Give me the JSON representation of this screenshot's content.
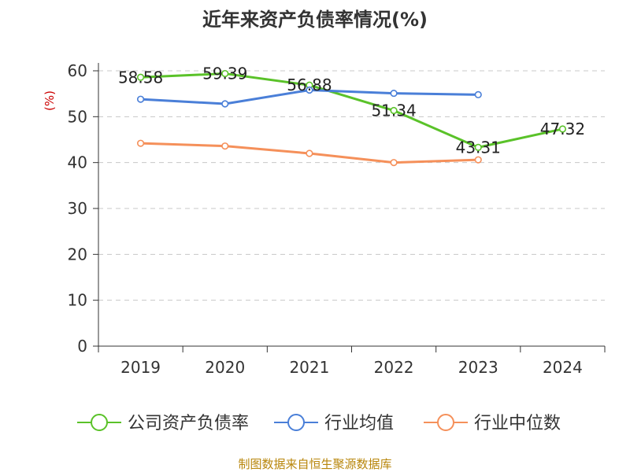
{
  "chart_data": {
    "type": "line",
    "title": "近年来资产负债率情况(%)",
    "ylabel": "(%)",
    "categories": [
      "2019",
      "2020",
      "2021",
      "2022",
      "2023",
      "2024"
    ],
    "ylim": [
      0,
      60
    ],
    "yticks": [
      0,
      10,
      20,
      30,
      40,
      50,
      60
    ],
    "grid": true,
    "legend_position": "bottom",
    "series": [
      {
        "name": "公司资产负债率",
        "color": "#5ac229",
        "values": [
          58.58,
          59.39,
          56.88,
          51.34,
          43.31,
          47.32
        ],
        "labels": [
          "58.58",
          "59.39",
          "56.88",
          "51.34",
          "43.31",
          "47.32"
        ]
      },
      {
        "name": "行业均值",
        "color": "#4a7fd8",
        "values": [
          53.8,
          52.8,
          55.8,
          55.1,
          54.8,
          null
        ]
      },
      {
        "name": "行业中位数",
        "color": "#f5905a",
        "values": [
          44.2,
          43.6,
          42.0,
          40.0,
          40.6,
          null
        ]
      }
    ]
  },
  "footer": {
    "source": "制图数据来自恒生聚源数据库"
  }
}
